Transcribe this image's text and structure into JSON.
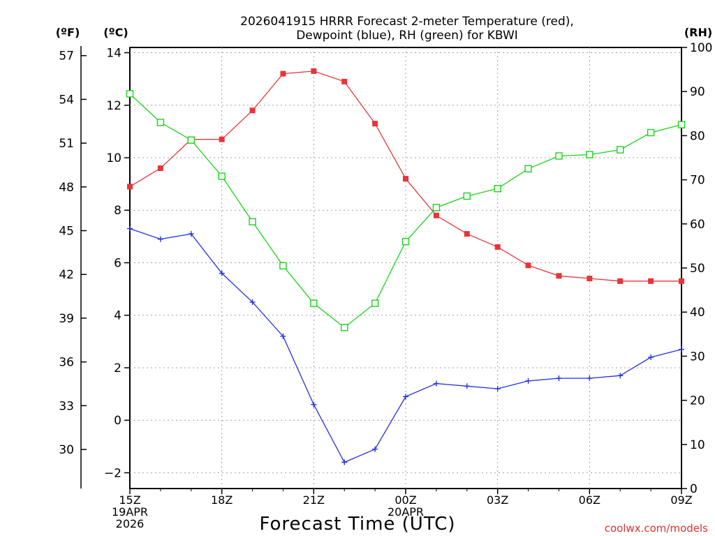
{
  "title_line1": "2026041915 HRRR Forecast 2-meter Temperature (red),",
  "title_line2": "Dewpoint (blue), RH (green) for KBWI",
  "unit_f": "(ºF)",
  "unit_c": "(ºC)",
  "unit_rh": "(RH)",
  "xlabel": "Forecast Time (UTC)",
  "credit": "coolwx.com/models",
  "colors": {
    "temperature": "#e8343a",
    "dewpoint": "#2430e0",
    "rh": "#19d419",
    "grid": "#a0a0a0",
    "credit": "#e03030"
  },
  "chart_data": {
    "type": "line",
    "x_hours": [
      0,
      1,
      2,
      3,
      4,
      5,
      6,
      7,
      8,
      9,
      10,
      11,
      12,
      13,
      14,
      15,
      16,
      17,
      18
    ],
    "x_ticks": [
      {
        "hour": 0,
        "lines": [
          "15Z",
          "19APR",
          "2026"
        ]
      },
      {
        "hour": 3,
        "lines": [
          "18Z"
        ]
      },
      {
        "hour": 6,
        "lines": [
          "21Z"
        ]
      },
      {
        "hour": 9,
        "lines": [
          "00Z",
          "20APR"
        ]
      },
      {
        "hour": 12,
        "lines": [
          "03Z"
        ]
      },
      {
        "hour": 15,
        "lines": [
          "06Z"
        ]
      },
      {
        "hour": 18,
        "lines": [
          "09Z"
        ]
      }
    ],
    "axes": {
      "celsius": {
        "range": [
          -2.6,
          14.2
        ],
        "ticks": [
          "-2",
          "0",
          "2",
          "4",
          "6",
          "8",
          "10",
          "12",
          "14"
        ]
      },
      "fahrenheit": {
        "ticks": [
          "30",
          "33",
          "36",
          "39",
          "42",
          "45",
          "48",
          "51",
          "54",
          "57"
        ]
      },
      "rh": {
        "range": [
          0,
          100
        ],
        "ticks": [
          "0",
          "10",
          "20",
          "30",
          "40",
          "50",
          "60",
          "70",
          "80",
          "90",
          "100"
        ]
      }
    },
    "grid": true,
    "series": [
      {
        "key": "temperature",
        "axis": "celsius",
        "marker": "filled-square",
        "values": [
          8.9,
          9.6,
          10.7,
          10.7,
          11.8,
          13.2,
          13.3,
          12.9,
          11.3,
          9.2,
          7.8,
          7.1,
          6.6,
          5.9,
          5.5,
          5.4,
          5.3,
          5.3,
          5.3
        ]
      },
      {
        "key": "dewpoint",
        "axis": "celsius",
        "marker": "plus",
        "values": [
          7.3,
          6.9,
          7.1,
          5.6,
          4.5,
          3.2,
          0.6,
          -1.6,
          -1.1,
          0.9,
          1.4,
          1.3,
          1.2,
          1.5,
          1.6,
          1.6,
          1.7,
          2.4,
          2.7
        ]
      },
      {
        "key": "rh",
        "axis": "rh",
        "marker": "open-square",
        "values": [
          89.5,
          83,
          79,
          70.8,
          60.5,
          50.5,
          42,
          36.5,
          42,
          56,
          63.7,
          66.3,
          68,
          72.5,
          75.4,
          75.7,
          76.8,
          80.7,
          82.5
        ]
      }
    ]
  }
}
